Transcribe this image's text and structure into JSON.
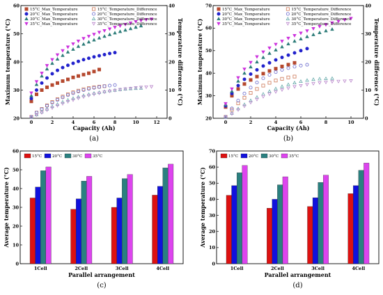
{
  "chart_data": [
    {
      "panel": "(a)",
      "type": "scatter",
      "xlabel": "Capacity (Ah)",
      "ylabel": "Maximum temperature (°C)",
      "y2label": "Temperature difference (°C)",
      "xlim": [
        -1,
        13
      ],
      "ylim": [
        20,
        60
      ],
      "y2lim": [
        0,
        40
      ],
      "xticks": [
        "0",
        "2",
        "4",
        "6",
        "8",
        "10",
        "12"
      ],
      "yticks": [
        "20",
        "30",
        "40",
        "50",
        "60"
      ],
      "y2ticks": [
        "0",
        "10",
        "20",
        "30",
        "40"
      ],
      "legend": "top-left, 2 columns",
      "series": [
        {
          "name": "15°C_Max_Temperature",
          "axis": "left",
          "marker": "square-filled",
          "color": "#b5482e",
          "x": [
            0,
            0.5,
            1,
            1.5,
            2,
            2.5,
            3,
            3.5,
            4,
            4.5,
            5,
            5.5,
            6,
            6.5
          ],
          "y": [
            26,
            28.5,
            30,
            31,
            31.8,
            32.5,
            33.2,
            33.8,
            34.5,
            35,
            35.5,
            36,
            36.6,
            37.3
          ]
        },
        {
          "name": "20°C_Max_Temperature",
          "axis": "left",
          "marker": "circle-filled",
          "color": "#2222cc",
          "x": [
            0,
            0.5,
            1,
            1.5,
            2,
            2.5,
            3,
            3.5,
            4,
            4.5,
            5,
            5.5,
            6,
            6.5,
            7,
            7.5,
            8
          ],
          "y": [
            27,
            30,
            32.5,
            34.3,
            35.8,
            37,
            38,
            38.8,
            39.5,
            40.2,
            40.8,
            41.3,
            41.8,
            42.2,
            42.6,
            43,
            43.3
          ]
        },
        {
          "name": "30°C_Max_Temperature",
          "axis": "left",
          "marker": "triangle-filled",
          "color": "#2e7d7a",
          "x": [
            0,
            0.5,
            1,
            1.5,
            2,
            2.5,
            3,
            3.5,
            4,
            4.5,
            5,
            5.5,
            6,
            6.5,
            7,
            7.5,
            8,
            8.5,
            9,
            9.5,
            10,
            10.5
          ],
          "y": [
            28,
            32,
            35,
            37.5,
            39.5,
            41,
            42.3,
            43.5,
            44.5,
            45.5,
            46.3,
            47.1,
            47.8,
            48.5,
            49.1,
            49.7,
            50.3,
            50.8,
            51.3,
            51.8,
            52.3,
            52.8
          ]
        },
        {
          "name": "35°C_Max_Temperature",
          "axis": "left",
          "marker": "triangle-down-filled",
          "color": "#cc33dd",
          "x": [
            0,
            0.5,
            1,
            1.5,
            2,
            2.5,
            3,
            3.5,
            4,
            4.5,
            5,
            5.5,
            6,
            6.5,
            7,
            7.5,
            8,
            8.5,
            9,
            9.5,
            10,
            10.5,
            11,
            11.5
          ],
          "y": [
            29,
            33,
            36,
            38.7,
            40.8,
            42.5,
            44,
            45.3,
            46.4,
            47.4,
            48.3,
            49.1,
            49.8,
            50.5,
            51.1,
            51.7,
            52.3,
            52.8,
            53.3,
            53.8,
            54.3,
            54.7,
            55,
            55.2
          ]
        },
        {
          "name": "15°C_Temperature_Difference",
          "axis": "right",
          "marker": "square-open",
          "color": "#cc7755",
          "x": [
            0,
            0.5,
            1,
            1.5,
            2,
            2.5,
            3,
            3.5,
            4,
            4.5,
            5,
            5.5,
            6,
            6.5,
            7
          ],
          "y": [
            0.5,
            2,
            3.3,
            4.6,
            5.8,
            6.8,
            7.7,
            8.5,
            9.2,
            9.8,
            10.3,
            10.7,
            11,
            11.2,
            11.4
          ]
        },
        {
          "name": "20°C_Temperature_Difference",
          "axis": "right",
          "marker": "circle-open",
          "color": "#6666cc",
          "x": [
            0,
            0.5,
            1,
            1.5,
            2,
            2.5,
            3,
            3.5,
            4,
            4.5,
            5,
            5.5,
            6,
            6.5,
            7,
            7.5,
            8
          ],
          "y": [
            0.5,
            2,
            3.2,
            4.4,
            5.5,
            6.5,
            7.4,
            8.2,
            8.9,
            9.5,
            10,
            10.4,
            10.8,
            11.1,
            11.4,
            11.6,
            11.8
          ]
        },
        {
          "name": "30°C_Temperature_Difference",
          "axis": "right",
          "marker": "triangle-open",
          "color": "#66aaaa",
          "x": [
            0,
            0.5,
            1,
            1.5,
            2,
            2.5,
            3,
            3.5,
            4,
            4.5,
            5,
            5.5,
            6,
            6.5,
            7,
            7.5,
            8,
            8.5,
            9,
            9.5,
            10,
            10.5
          ],
          "y": [
            0.3,
            1.3,
            2.3,
            3.3,
            4.2,
            5,
            5.8,
            6.5,
            7.1,
            7.6,
            8.1,
            8.5,
            8.9,
            9.2,
            9.5,
            9.8,
            10,
            10.2,
            10.4,
            10.5,
            10.6,
            10.7
          ]
        },
        {
          "name": "35°C_Temperature_Difference",
          "axis": "right",
          "marker": "triangle-down-open",
          "color": "#bb88cc",
          "x": [
            0,
            0.5,
            1,
            1.5,
            2,
            2.5,
            3,
            3.5,
            4,
            4.5,
            5,
            5.5,
            6,
            6.5,
            7,
            7.5,
            8,
            8.5,
            9,
            9.5,
            10,
            10.5,
            11,
            11.5
          ],
          "y": [
            0.3,
            1.2,
            2,
            2.9,
            3.7,
            4.5,
            5.2,
            5.9,
            6.5,
            7.1,
            7.6,
            8.1,
            8.5,
            8.9,
            9.3,
            9.6,
            9.9,
            10.2,
            10.4,
            10.6,
            10.8,
            11,
            11.1,
            11.2
          ]
        }
      ]
    },
    {
      "panel": "(b)",
      "type": "scatter",
      "xlabel": "Capacity (Ah)",
      "ylabel": "Maximum temperature (°C)",
      "y2label": "Temperature difference (°C)",
      "xlim": [
        -1,
        11
      ],
      "ylim": [
        20,
        70
      ],
      "y2lim": [
        0,
        40
      ],
      "xticks": [
        "0",
        "2",
        "4",
        "6",
        "8",
        "10"
      ],
      "yticks": [
        "20",
        "30",
        "40",
        "50",
        "60",
        "70"
      ],
      "y2ticks": [
        "0",
        "10",
        "20",
        "30",
        "40"
      ],
      "legend": "top-left, 2 columns",
      "series": [
        {
          "name": "15°C_Max_Temperature",
          "axis": "left",
          "marker": "square-filled",
          "color": "#b5482e",
          "x": [
            0,
            0.5,
            1,
            1.5,
            2,
            2.5,
            3,
            3.5,
            4,
            4.5,
            5,
            5.5
          ],
          "y": [
            25,
            30,
            33,
            35.2,
            37,
            38.5,
            39.8,
            41,
            42,
            43,
            43.8,
            44.6
          ]
        },
        {
          "name": "20°C_Max_Temperature",
          "axis": "left",
          "marker": "circle-filled",
          "color": "#2222cc",
          "x": [
            0,
            0.5,
            1,
            1.5,
            2,
            2.5,
            3,
            3.5,
            4,
            4.5,
            5,
            5.5,
            6,
            6.5
          ],
          "y": [
            25.5,
            31,
            34.5,
            37.3,
            39.6,
            41.5,
            43.2,
            44.6,
            45.9,
            47,
            48,
            49,
            50,
            50.9
          ]
        },
        {
          "name": "30°C_Max_Temperature",
          "axis": "left",
          "marker": "triangle-filled",
          "color": "#2e7d7a",
          "x": [
            0,
            0.5,
            1,
            1.5,
            2,
            2.5,
            3,
            3.5,
            4,
            4.5,
            5,
            5.5,
            6,
            6.5,
            7,
            7.5,
            8,
            8.5
          ],
          "y": [
            26,
            32,
            36.5,
            40,
            42.8,
            45,
            47,
            48.8,
            50.3,
            51.7,
            53,
            54.2,
            55.2,
            56.2,
            57.1,
            58,
            58.8,
            59.5
          ]
        },
        {
          "name": "35°C_Max_Temperature",
          "axis": "left",
          "marker": "triangle-down-filled",
          "color": "#cc33dd",
          "x": [
            0,
            0.5,
            1,
            1.5,
            2,
            2.5,
            3,
            3.5,
            4,
            4.5,
            5,
            5.5,
            6,
            6.5,
            7,
            7.5,
            8,
            8.5,
            9,
            9.5,
            10
          ],
          "y": [
            26.5,
            33,
            38,
            41.8,
            44.8,
            47.3,
            49.4,
            51.2,
            52.8,
            54.2,
            55.5,
            56.7,
            57.8,
            58.8,
            59.8,
            60.7,
            61.5,
            62.3,
            63,
            63.7,
            64.3
          ]
        },
        {
          "name": "15°C_Temperature_Difference",
          "axis": "right",
          "marker": "square-open",
          "color": "#cc7755",
          "x": [
            0,
            0.5,
            1,
            1.5,
            2,
            2.5,
            3,
            3.5,
            4,
            4.5,
            5,
            5.5
          ],
          "y": [
            0.5,
            3,
            5.3,
            7.3,
            9,
            10.4,
            11.6,
            12.6,
            13.4,
            14,
            14.5,
            14.8
          ]
        },
        {
          "name": "20°C_Temperature_Difference",
          "axis": "right",
          "marker": "circle-open",
          "color": "#6666cc",
          "x": [
            0,
            0.5,
            1,
            1.5,
            2,
            2.5,
            3,
            3.5,
            4,
            4.5,
            5,
            5.5,
            6,
            6.5
          ],
          "y": [
            0.5,
            3.5,
            6.3,
            8.8,
            10.9,
            12.7,
            14.2,
            15.4,
            16.4,
            17.2,
            17.8,
            18.3,
            18.7,
            19
          ]
        },
        {
          "name": "30°C_Temperature_Difference",
          "axis": "right",
          "marker": "triangle-open",
          "color": "#66aaaa",
          "x": [
            0,
            0.5,
            1,
            1.5,
            2,
            2.5,
            3,
            3.5,
            4,
            4.5,
            5,
            5.5,
            6,
            6.5,
            7,
            7.5,
            8,
            8.5
          ],
          "y": [
            0.3,
            1.8,
            3.4,
            4.9,
            6.3,
            7.5,
            8.6,
            9.6,
            10.5,
            11.3,
            12,
            12.6,
            13.1,
            13.5,
            13.8,
            14,
            14.1,
            14.2
          ]
        },
        {
          "name": "35°C_Temperature_Difference",
          "axis": "right",
          "marker": "triangle-down-open",
          "color": "#bb88cc",
          "x": [
            0,
            0.5,
            1,
            1.5,
            2,
            2.5,
            3,
            3.5,
            4,
            4.5,
            5,
            5.5,
            6,
            6.5,
            7,
            7.5,
            8,
            8.5,
            9,
            9.5,
            10
          ],
          "y": [
            0.3,
            1.6,
            3,
            4.3,
            5.6,
            6.7,
            7.7,
            8.6,
            9.4,
            10.1,
            10.7,
            11.2,
            11.6,
            12,
            12.3,
            12.6,
            12.8,
            13,
            13.1,
            13.2,
            13.3
          ]
        }
      ]
    },
    {
      "panel": "(c)",
      "type": "bar",
      "xlabel": "Parallel arrangement",
      "ylabel": "Average temperature (°C)",
      "ylim": [
        0,
        60
      ],
      "yticks": [
        "0",
        "10",
        "20",
        "30",
        "40",
        "50",
        "60"
      ],
      "legend": "top-left, horizontal",
      "categories": [
        "1Cell",
        "2Cell",
        "3Cell",
        "4Cell"
      ],
      "series": [
        {
          "name": "15°C",
          "color": "#dd1111",
          "values": [
            35,
            29,
            30,
            36.5
          ]
        },
        {
          "name": "20°C",
          "color": "#1111dd",
          "values": [
            40.8,
            34.5,
            35,
            41.2
          ]
        },
        {
          "name": "30°C",
          "color": "#2a8080",
          "values": [
            49.5,
            44,
            45.3,
            51
          ]
        },
        {
          "name": "35°C",
          "color": "#dd44ee",
          "values": [
            51.5,
            46.5,
            47.5,
            53
          ]
        }
      ]
    },
    {
      "panel": "(d)",
      "type": "bar",
      "xlabel": "Parallel arrangement",
      "ylabel": "Average temperature (°C)",
      "ylim": [
        0,
        70
      ],
      "yticks": [
        "0",
        "10",
        "20",
        "30",
        "40",
        "50",
        "60",
        "70"
      ],
      "legend": "top-left, horizontal",
      "categories": [
        "1Cell",
        "2Cell",
        "3Cell",
        "4Cell"
      ],
      "series": [
        {
          "name": "15°C",
          "color": "#dd1111",
          "values": [
            42.5,
            34.5,
            35.5,
            43.5
          ]
        },
        {
          "name": "20°C",
          "color": "#1111dd",
          "values": [
            48.5,
            40,
            41,
            48.5
          ]
        },
        {
          "name": "30°C",
          "color": "#2a8080",
          "values": [
            56.5,
            49,
            50.5,
            58
          ]
        },
        {
          "name": "35°C",
          "color": "#dd44ee",
          "values": [
            61,
            54,
            55,
            62.5
          ]
        }
      ]
    }
  ]
}
